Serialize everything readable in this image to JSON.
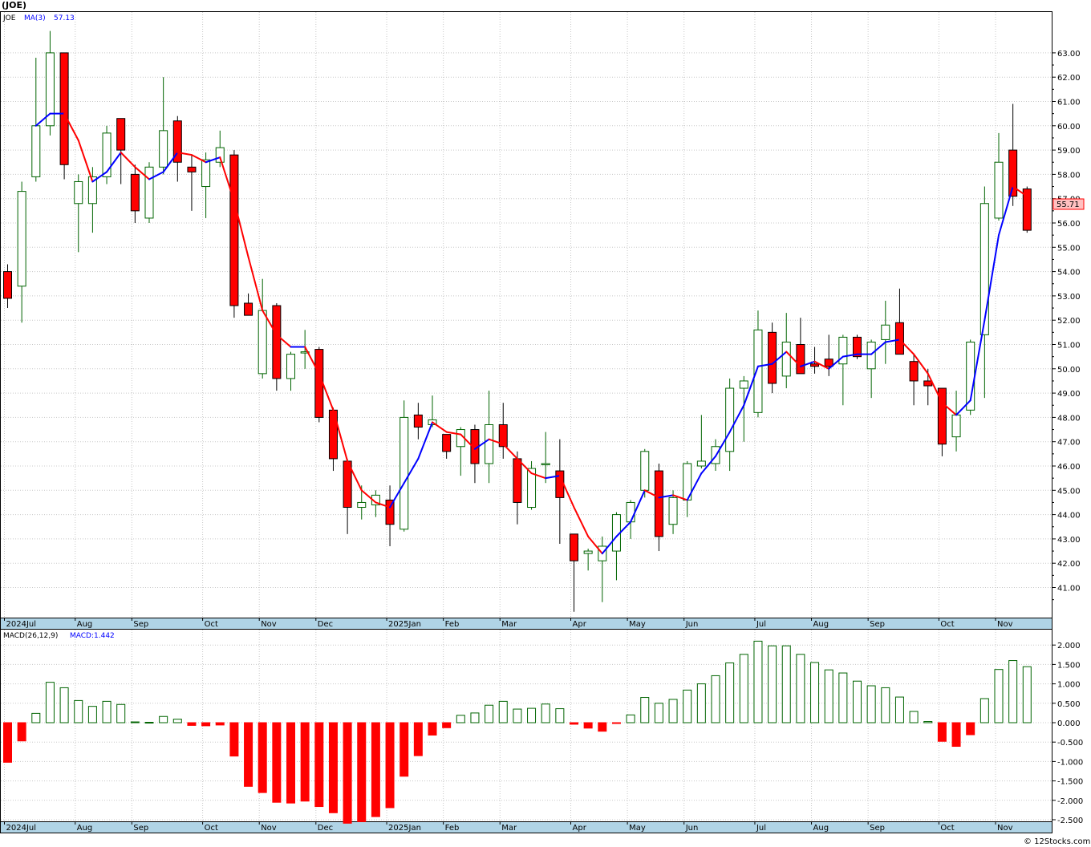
{
  "title": "(JOE)",
  "footer": "© 12Stocks.com",
  "colors": {
    "up": "#006400",
    "down": "#ff0000",
    "ma_up": "#0000ff",
    "ma_down": "#ff0000",
    "grid": "#c8c8c8",
    "axis_band": "#b0d4e6",
    "price_badge_bg": "#ffc0c0",
    "price_badge_border": "#ff0000"
  },
  "chart_data": [
    {
      "type": "candlestick",
      "legend": {
        "symbol": "JOE",
        "ma_label": "MA(3)",
        "ma_value": "57.13"
      },
      "last_price_label": "55.71",
      "ylim": [
        40,
        64
      ],
      "y_ticks": [
        41,
        42,
        43,
        44,
        45,
        46,
        47,
        48,
        49,
        50,
        51,
        52,
        53,
        54,
        55,
        56,
        57,
        58,
        59,
        60,
        61,
        62,
        63
      ],
      "y_tick_labels": [
        "41.00",
        "42.00",
        "43.00",
        "44.00",
        "45.00",
        "46.00",
        "47.00",
        "48.00",
        "49.00",
        "50.00",
        "51.00",
        "52.00",
        "53.00",
        "54.00",
        "55.00",
        "56.00",
        "57.00",
        "58.00",
        "59.00",
        "60.00",
        "61.00",
        "62.00",
        "63.00"
      ],
      "x_labels": [
        {
          "week": 0,
          "label": "2024Jul"
        },
        {
          "week": 5,
          "label": "Aug"
        },
        {
          "week": 9,
          "label": "Sep"
        },
        {
          "week": 14,
          "label": "Oct"
        },
        {
          "week": 18,
          "label": "Nov"
        },
        {
          "week": 22,
          "label": "Dec"
        },
        {
          "week": 27,
          "label": "2025Jan"
        },
        {
          "week": 31,
          "label": "Feb"
        },
        {
          "week": 35,
          "label": "Mar"
        },
        {
          "week": 40,
          "label": "Apr"
        },
        {
          "week": 44,
          "label": "May"
        },
        {
          "week": 48,
          "label": "Jun"
        },
        {
          "week": 53,
          "label": "Jul"
        },
        {
          "week": 57,
          "label": "Aug"
        },
        {
          "week": 61,
          "label": "Sep"
        },
        {
          "week": 66,
          "label": "Oct"
        },
        {
          "week": 70,
          "label": "Nov"
        }
      ],
      "candles": [
        {
          "o": 54.0,
          "h": 54.3,
          "l": 52.5,
          "c": 52.9
        },
        {
          "o": 53.4,
          "h": 57.7,
          "l": 51.9,
          "c": 57.3
        },
        {
          "o": 57.9,
          "h": 62.8,
          "l": 57.7,
          "c": 60.0
        },
        {
          "o": 60.0,
          "h": 63.9,
          "l": 59.6,
          "c": 63.0
        },
        {
          "o": 63.0,
          "h": 63.0,
          "l": 57.8,
          "c": 58.4
        },
        {
          "o": 56.8,
          "h": 58.0,
          "l": 54.8,
          "c": 57.7
        },
        {
          "o": 56.8,
          "h": 58.3,
          "l": 55.6,
          "c": 57.9
        },
        {
          "o": 57.9,
          "h": 60.0,
          "l": 57.6,
          "c": 59.7
        },
        {
          "o": 60.3,
          "h": 60.3,
          "l": 57.6,
          "c": 59.0
        },
        {
          "o": 58.0,
          "h": 58.4,
          "l": 56.0,
          "c": 56.5
        },
        {
          "o": 56.2,
          "h": 58.5,
          "l": 56.0,
          "c": 58.3
        },
        {
          "o": 58.3,
          "h": 62.0,
          "l": 58.0,
          "c": 59.8
        },
        {
          "o": 60.2,
          "h": 60.4,
          "l": 57.7,
          "c": 58.5
        },
        {
          "o": 58.3,
          "h": 58.8,
          "l": 56.5,
          "c": 58.1
        },
        {
          "o": 57.5,
          "h": 58.9,
          "l": 56.2,
          "c": 58.6
        },
        {
          "o": 58.5,
          "h": 59.8,
          "l": 58.3,
          "c": 59.1
        },
        {
          "o": 58.8,
          "h": 59.0,
          "l": 52.1,
          "c": 52.6
        },
        {
          "o": 52.7,
          "h": 53.1,
          "l": 52.2,
          "c": 52.2
        },
        {
          "o": 49.8,
          "h": 53.7,
          "l": 49.6,
          "c": 52.4
        },
        {
          "o": 52.6,
          "h": 52.7,
          "l": 49.1,
          "c": 49.6
        },
        {
          "o": 49.6,
          "h": 50.7,
          "l": 49.1,
          "c": 50.6
        },
        {
          "o": 50.7,
          "h": 51.6,
          "l": 50.0,
          "c": 50.7
        },
        {
          "o": 50.8,
          "h": 50.9,
          "l": 47.8,
          "c": 48.0
        },
        {
          "o": 48.3,
          "h": 48.4,
          "l": 45.8,
          "c": 46.3
        },
        {
          "o": 46.2,
          "h": 46.3,
          "l": 43.2,
          "c": 44.3
        },
        {
          "o": 44.3,
          "h": 45.2,
          "l": 43.8,
          "c": 44.5
        },
        {
          "o": 44.4,
          "h": 45.0,
          "l": 43.9,
          "c": 44.8
        },
        {
          "o": 44.6,
          "h": 45.2,
          "l": 42.7,
          "c": 43.6
        },
        {
          "o": 43.4,
          "h": 48.7,
          "l": 43.3,
          "c": 48.0
        },
        {
          "o": 48.1,
          "h": 48.6,
          "l": 47.1,
          "c": 47.6
        },
        {
          "o": 47.7,
          "h": 48.9,
          "l": 47.6,
          "c": 47.9
        },
        {
          "o": 47.3,
          "h": 47.3,
          "l": 46.3,
          "c": 46.6
        },
        {
          "o": 46.8,
          "h": 47.6,
          "l": 45.6,
          "c": 47.5
        },
        {
          "o": 47.5,
          "h": 47.7,
          "l": 45.3,
          "c": 46.1
        },
        {
          "o": 46.1,
          "h": 49.1,
          "l": 45.3,
          "c": 47.7
        },
        {
          "o": 47.7,
          "h": 48.6,
          "l": 46.3,
          "c": 46.8
        },
        {
          "o": 46.3,
          "h": 46.6,
          "l": 43.6,
          "c": 44.5
        },
        {
          "o": 44.3,
          "h": 46.2,
          "l": 44.2,
          "c": 45.9
        },
        {
          "o": 46.1,
          "h": 47.4,
          "l": 45.3,
          "c": 46.1
        },
        {
          "o": 45.8,
          "h": 47.1,
          "l": 42.8,
          "c": 44.7
        },
        {
          "o": 43.2,
          "h": 43.2,
          "l": 40.0,
          "c": 42.1
        },
        {
          "o": 42.4,
          "h": 42.6,
          "l": 41.7,
          "c": 42.5
        },
        {
          "o": 42.1,
          "h": 43.1,
          "l": 40.4,
          "c": 42.7
        },
        {
          "o": 42.5,
          "h": 44.1,
          "l": 41.3,
          "c": 44.0
        },
        {
          "o": 43.7,
          "h": 44.6,
          "l": 43.0,
          "c": 44.5
        },
        {
          "o": 45.0,
          "h": 46.7,
          "l": 44.7,
          "c": 46.6
        },
        {
          "o": 45.8,
          "h": 46.1,
          "l": 42.5,
          "c": 43.1
        },
        {
          "o": 43.6,
          "h": 45.0,
          "l": 43.2,
          "c": 44.7
        },
        {
          "o": 44.6,
          "h": 46.2,
          "l": 43.9,
          "c": 46.1
        },
        {
          "o": 46.0,
          "h": 48.1,
          "l": 45.9,
          "c": 46.2
        },
        {
          "o": 46.1,
          "h": 47.1,
          "l": 45.8,
          "c": 46.8
        },
        {
          "o": 46.6,
          "h": 49.6,
          "l": 45.8,
          "c": 49.2
        },
        {
          "o": 49.2,
          "h": 49.7,
          "l": 47.0,
          "c": 49.5
        },
        {
          "o": 48.2,
          "h": 52.4,
          "l": 48.0,
          "c": 51.6
        },
        {
          "o": 51.5,
          "h": 51.9,
          "l": 49.0,
          "c": 49.4
        },
        {
          "o": 49.7,
          "h": 52.3,
          "l": 49.2,
          "c": 51.1
        },
        {
          "o": 51.0,
          "h": 52.1,
          "l": 49.8,
          "c": 49.8
        },
        {
          "o": 50.2,
          "h": 50.9,
          "l": 49.8,
          "c": 50.1
        },
        {
          "o": 50.4,
          "h": 51.4,
          "l": 49.7,
          "c": 50.1
        },
        {
          "o": 50.2,
          "h": 51.4,
          "l": 48.5,
          "c": 51.3
        },
        {
          "o": 51.3,
          "h": 51.4,
          "l": 50.4,
          "c": 50.5
        },
        {
          "o": 50.0,
          "h": 51.2,
          "l": 48.8,
          "c": 51.1
        },
        {
          "o": 51.2,
          "h": 52.8,
          "l": 50.2,
          "c": 51.8
        },
        {
          "o": 51.9,
          "h": 53.3,
          "l": 50.6,
          "c": 50.6
        },
        {
          "o": 50.3,
          "h": 50.6,
          "l": 48.5,
          "c": 49.5
        },
        {
          "o": 49.5,
          "h": 50.0,
          "l": 48.5,
          "c": 49.3
        },
        {
          "o": 49.2,
          "h": 49.2,
          "l": 46.4,
          "c": 46.9
        },
        {
          "o": 47.2,
          "h": 49.1,
          "l": 46.6,
          "c": 48.1
        },
        {
          "o": 48.3,
          "h": 51.2,
          "l": 48.1,
          "c": 51.1
        },
        {
          "o": 51.4,
          "h": 57.5,
          "l": 48.8,
          "c": 56.8
        },
        {
          "o": 56.2,
          "h": 59.7,
          "l": 56.1,
          "c": 58.5
        },
        {
          "o": 59.0,
          "h": 60.9,
          "l": 56.7,
          "c": 57.1
        },
        {
          "o": 57.4,
          "h": 57.5,
          "l": 55.6,
          "c": 55.7
        }
      ],
      "ma3": [
        null,
        null,
        60.0,
        60.5,
        60.5,
        59.4,
        57.7,
        58.1,
        58.9,
        58.3,
        57.8,
        58.1,
        58.9,
        58.8,
        58.5,
        58.7,
        56.9,
        54.6,
        52.4,
        51.4,
        50.9,
        50.9,
        49.8,
        48.3,
        46.2,
        45.0,
        44.5,
        44.3,
        45.3,
        46.3,
        47.8,
        47.4,
        47.3,
        46.7,
        47.1,
        46.9,
        46.3,
        45.7,
        45.5,
        45.6,
        44.3,
        43.1,
        42.4,
        43.1,
        43.7,
        45.0,
        44.7,
        44.8,
        44.6,
        45.7,
        46.4,
        47.4,
        48.5,
        50.1,
        50.2,
        50.7,
        50.1,
        50.3,
        50.0,
        50.5,
        50.6,
        50.6,
        51.1,
        51.2,
        50.6,
        49.8,
        48.6,
        48.1,
        48.7,
        52.0,
        55.5,
        57.5,
        57.1
      ],
      "ma3_end_segments_up": true
    },
    {
      "type": "bar",
      "legend": {
        "name": "MACD(26,12,9)",
        "value_label": "MACD:1.442"
      },
      "ylim": [
        -2.62,
        2.2
      ],
      "y_ticks": [
        -2.5,
        -2.0,
        -1.5,
        -1.0,
        -0.5,
        0.0,
        0.5,
        1.0,
        1.5,
        2.0
      ],
      "y_tick_labels": [
        "-2.500",
        "-2.000",
        "-1.500",
        "-1.000",
        "-0.500",
        "0.000",
        "0.500",
        "1.000",
        "1.500",
        "2.000"
      ],
      "values": [
        -1.02,
        -0.47,
        0.24,
        1.04,
        0.9,
        0.57,
        0.42,
        0.55,
        0.47,
        0.02,
        0.01,
        0.16,
        0.09,
        -0.07,
        -0.08,
        -0.06,
        -0.86,
        -1.64,
        -1.8,
        -2.05,
        -2.07,
        -2.02,
        -2.16,
        -2.32,
        -2.59,
        -2.55,
        -2.42,
        -2.19,
        -1.38,
        -0.85,
        -0.32,
        -0.13,
        0.19,
        0.25,
        0.45,
        0.55,
        0.35,
        0.37,
        0.48,
        0.36,
        -0.04,
        -0.14,
        -0.22,
        -0.02,
        0.2,
        0.65,
        0.5,
        0.6,
        0.84,
        1.0,
        1.21,
        1.54,
        1.76,
        2.1,
        1.98,
        1.98,
        1.76,
        1.55,
        1.36,
        1.28,
        1.07,
        0.95,
        0.9,
        0.66,
        0.29,
        0.03,
        -0.48,
        -0.61,
        -0.31,
        0.62,
        1.37,
        1.6,
        1.442
      ]
    }
  ]
}
